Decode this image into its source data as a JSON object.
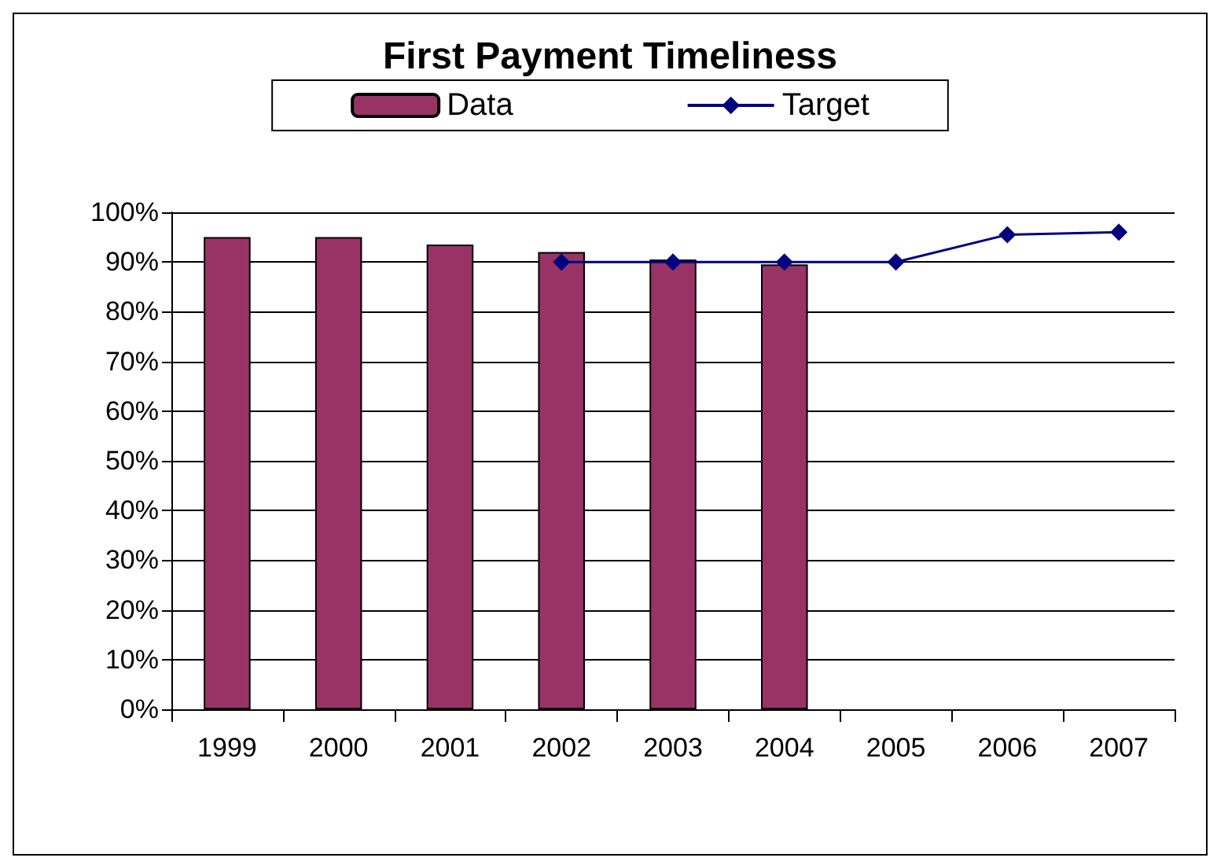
{
  "chart_data": {
    "type": "bar",
    "title": "First Payment Timeliness",
    "categories": [
      "1999",
      "2000",
      "2001",
      "2002",
      "2003",
      "2004",
      "2005",
      "2006",
      "2007"
    ],
    "series": [
      {
        "name": "Data",
        "color": "#993366",
        "values": [
          95,
          95,
          93.5,
          92,
          90.5,
          89.5,
          null,
          null,
          null
        ]
      },
      {
        "name": "Target",
        "type": "line",
        "color": "#000080",
        "marker": "diamond",
        "values": [
          null,
          null,
          null,
          90,
          90,
          90,
          90,
          95.5,
          96
        ]
      }
    ],
    "ylim": [
      0,
      100
    ],
    "yticks": [
      {
        "value": 0,
        "label": "0%"
      },
      {
        "value": 10,
        "label": "10%"
      },
      {
        "value": 20,
        "label": "20%"
      },
      {
        "value": 30,
        "label": "30%"
      },
      {
        "value": 40,
        "label": "40%"
      },
      {
        "value": 50,
        "label": "50%"
      },
      {
        "value": 60,
        "label": "60%"
      },
      {
        "value": 70,
        "label": "70%"
      },
      {
        "value": 80,
        "label": "80%"
      },
      {
        "value": 90,
        "label": "90%"
      },
      {
        "value": 100,
        "label": "100%"
      }
    ],
    "grid": "y",
    "legend": "top"
  }
}
